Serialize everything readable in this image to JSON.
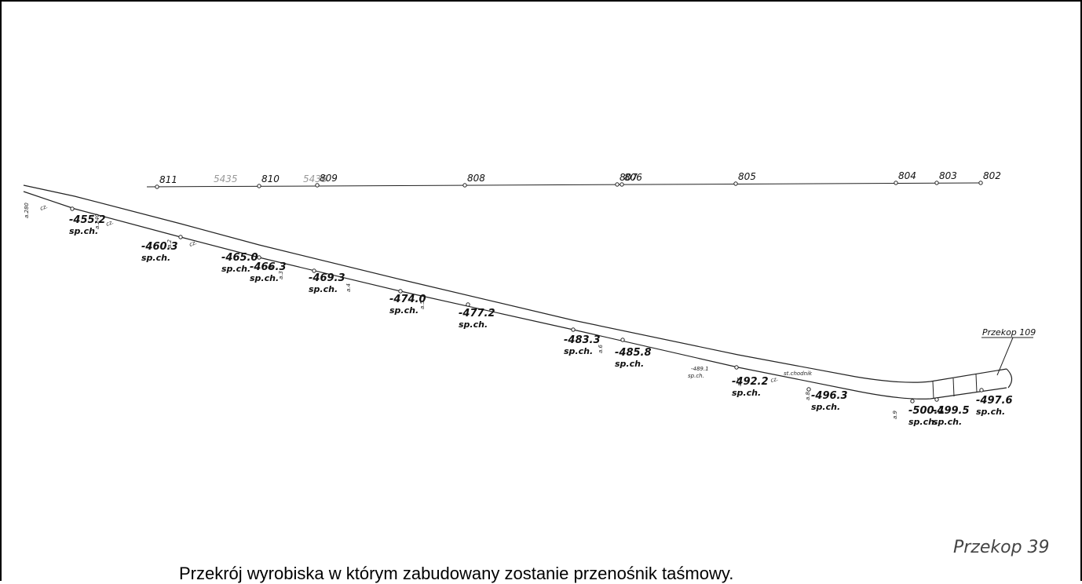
{
  "stations_line": {
    "stations": [
      {
        "label": "811",
        "muted": false
      },
      {
        "label": "5435",
        "muted": true
      },
      {
        "label": "810",
        "muted": false
      },
      {
        "label": "5436",
        "muted": true
      },
      {
        "label": "809",
        "muted": false
      },
      {
        "label": "808",
        "muted": false
      },
      {
        "label": "807",
        "muted": false
      },
      {
        "label": "806",
        "muted": false
      },
      {
        "label": "805",
        "muted": false
      },
      {
        "label": "804",
        "muted": false
      },
      {
        "label": "803",
        "muted": false
      },
      {
        "label": "802",
        "muted": false
      }
    ]
  },
  "profile": {
    "points": [
      {
        "elev": "-455.2",
        "note": "sp.ch."
      },
      {
        "elev": "-460.3",
        "note": "sp.ch."
      },
      {
        "elev": "-465.0",
        "note": "sp.ch."
      },
      {
        "elev": "-466.3",
        "note": "sp.ch."
      },
      {
        "elev": "-469.3",
        "note": "sp.ch."
      },
      {
        "elev": "-474.0",
        "note": "sp.ch."
      },
      {
        "elev": "-477.2",
        "note": "sp.ch."
      },
      {
        "elev": "-483.3",
        "note": "sp.ch."
      },
      {
        "elev": "-485.8",
        "note": "sp.ch."
      },
      {
        "elev": "-492.2",
        "note": "sp.ch."
      },
      {
        "elev": "-496.3",
        "note": "sp.ch."
      },
      {
        "elev": "-500.1",
        "note": "sp.ch."
      },
      {
        "elev": "-499.5",
        "note": "sp.ch."
      },
      {
        "elev": "-497.6",
        "note": "sp.ch."
      }
    ],
    "small_notes": {
      "left_a": "a.280",
      "cz1": "cz.",
      "cz2": "cz.",
      "cz3": "cz.",
      "a240": "a.240",
      "a2": "a.2",
      "a3": "a.3",
      "a4": "a.4",
      "a5": "a.5",
      "a6": "a.6",
      "a7": "a.7",
      "a8": "a.8",
      "a9": "a.9",
      "mini_elev": "-489.1",
      "mini_sp": "sp.ch.",
      "chodnik": "st.chodnik",
      "cz_extra": "cz."
    }
  },
  "labels": {
    "przekop_109": "Przekop 109",
    "przekop_39": "Przekop 39"
  },
  "caption": "Przekrój wyrobiska w którym zabudowany zostanie przenośnik taśmowy."
}
